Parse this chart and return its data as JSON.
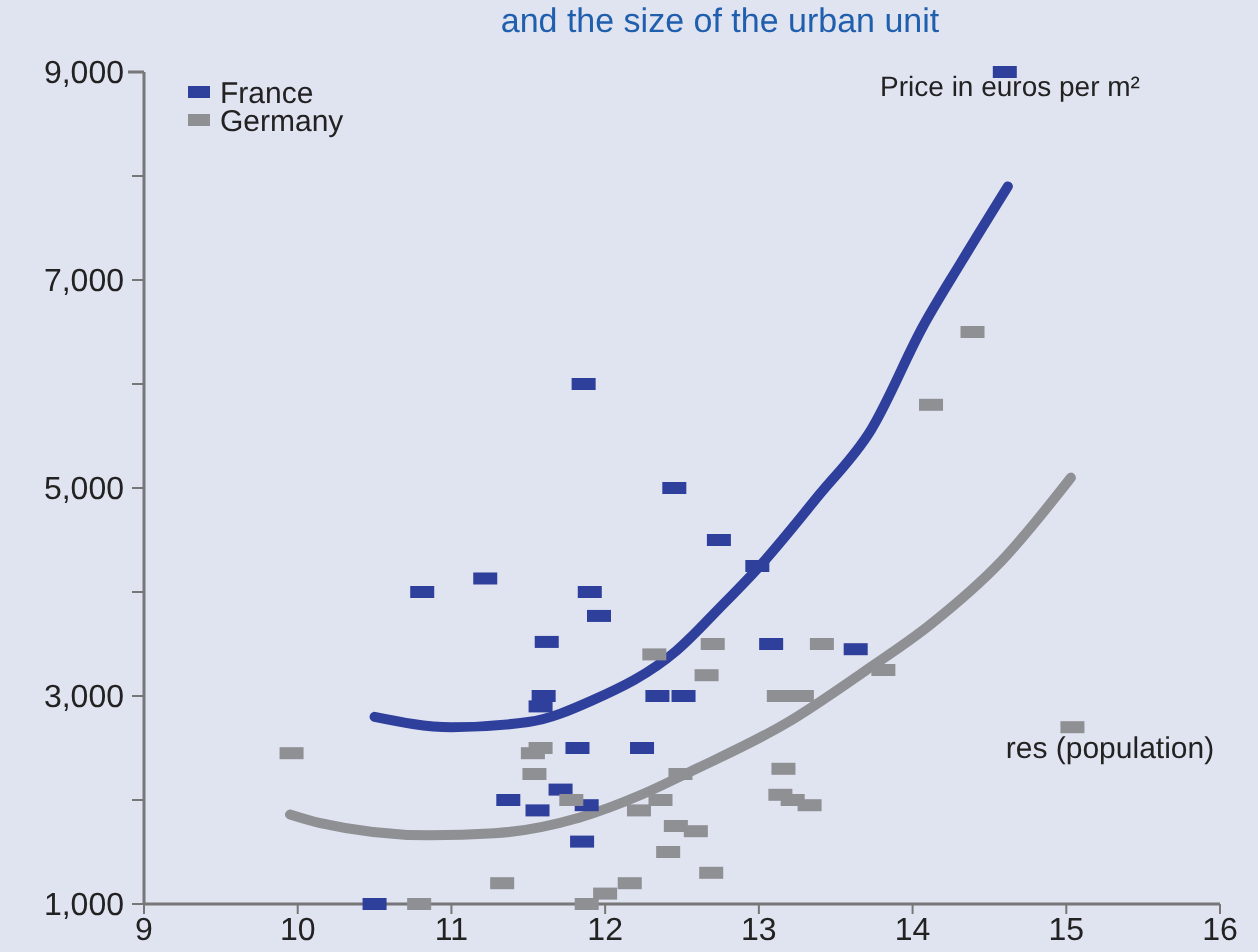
{
  "chart_data": {
    "type": "scatter",
    "title": "and the size of the urban unit",
    "xlabel": "res (population)",
    "ylabel": "Price in euros per m²",
    "xlim": [
      9,
      16
    ],
    "xticks": [
      9,
      10,
      11,
      12,
      13,
      14,
      15,
      16
    ],
    "ylim": [
      1000,
      9000
    ],
    "yticks": [
      {
        "value": 1000,
        "label": "1,000"
      },
      {
        "value": 2000,
        "label": null
      },
      {
        "value": 3000,
        "label": "3,000"
      },
      {
        "value": 4000,
        "label": null
      },
      {
        "value": 5000,
        "label": "5,000"
      },
      {
        "value": 6000,
        "label": null
      },
      {
        "value": 7000,
        "label": "7,000"
      },
      {
        "value": 8000,
        "label": null
      },
      {
        "value": 9000,
        "label": "9,000"
      }
    ],
    "legend": "top left",
    "grid": false,
    "marker": "square",
    "series": [
      {
        "name": "France",
        "color": "#2e3f9c",
        "type": "scatter",
        "x": [
          11.86,
          12.45,
          10.81,
          11.22,
          11.9,
          11.96,
          11.62,
          11.6,
          11.58,
          11.82,
          12.24,
          12.34,
          12.51,
          11.37,
          11.56,
          11.71,
          11.88,
          11.85,
          10.5,
          12.74,
          12.99,
          13.08,
          13.63,
          14.6
        ],
        "values": [
          6000,
          5000,
          4000,
          4130,
          4000,
          3770,
          3520,
          3000,
          2900,
          2500,
          2500,
          3000,
          3000,
          2000,
          1900,
          2100,
          1950,
          1600,
          1000,
          4500,
          4250,
          3500,
          3450,
          9000
        ]
      },
      {
        "name": "Germany",
        "color": "#8e9094",
        "type": "scatter",
        "x": [
          9.96,
          11.53,
          11.58,
          11.54,
          11.78,
          12.22,
          12.36,
          12.32,
          11.33,
          10.79,
          11.88,
          12.0,
          12.16,
          12.46,
          12.59,
          12.41,
          12.49,
          14.39,
          14.12,
          15.04,
          13.81,
          13.41,
          12.7,
          12.66,
          13.13,
          13.28,
          13.16,
          13.14,
          13.22,
          13.33,
          12.69
        ],
        "values": [
          2450,
          2450,
          2500,
          2250,
          2000,
          1900,
          2000,
          3400,
          1200,
          1000,
          1000,
          1100,
          1200,
          1750,
          1700,
          1500,
          2250,
          6500,
          5800,
          2700,
          3250,
          3500,
          3500,
          3200,
          3000,
          3000,
          2300,
          2050,
          2000,
          1950,
          1300
        ]
      },
      {
        "color": "#2e3f9c",
        "type": "line",
        "marker": "none",
        "x": [
          10.5,
          11.0,
          11.5,
          11.92,
          12.46,
          12.76,
          13.0,
          13.39,
          13.73,
          14.07,
          14.32,
          14.62
        ],
        "values": [
          2800,
          2700,
          2750,
          2960,
          3430,
          3870,
          4240,
          4930,
          5560,
          6560,
          7180,
          7900
        ]
      },
      {
        "color": "#8e9094",
        "type": "line",
        "marker": "none",
        "x": [
          9.95,
          10.14,
          10.86,
          11.28,
          11.83,
          12.25,
          12.55,
          13.18,
          13.69,
          14.11,
          14.58,
          15.03
        ],
        "values": [
          1860,
          1780,
          1660,
          1680,
          1830,
          2060,
          2270,
          2740,
          3240,
          3680,
          4300,
          5100
        ]
      }
    ]
  }
}
